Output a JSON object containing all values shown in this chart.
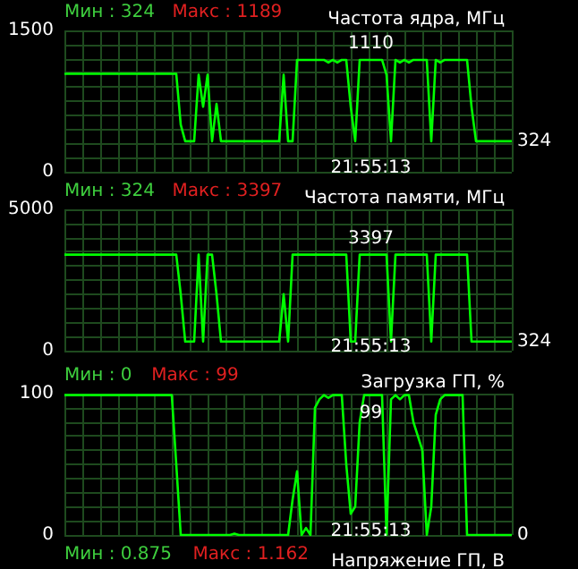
{
  "chart_data": [
    {
      "type": "line",
      "title": "Частота ядра, МГц",
      "annotations": [
        "Мин : 324",
        "Макс : 1189",
        "21:55:13",
        "1110",
        "324"
      ],
      "categories": [
        null,
        null,
        null,
        null,
        null,
        null,
        null,
        null,
        null,
        null,
        null,
        null,
        null,
        null,
        null,
        null,
        null,
        null,
        null,
        null,
        null,
        null,
        null,
        null,
        null,
        null,
        null,
        null,
        null,
        null,
        null,
        null,
        null,
        null,
        null,
        null,
        null,
        null,
        null,
        null,
        null,
        null,
        null,
        null,
        null,
        null,
        null,
        null,
        null,
        null,
        null,
        null,
        null,
        null,
        null,
        null,
        null,
        null,
        null,
        null,
        null,
        null,
        null,
        null,
        null,
        null,
        null,
        null,
        null,
        null,
        null,
        null,
        null,
        null,
        null,
        null,
        null,
        null,
        null,
        null,
        null,
        null,
        null,
        null,
        null,
        null,
        null,
        null,
        null,
        null,
        null,
        null,
        null,
        null,
        null,
        null,
        null,
        null,
        null,
        null,
        null
      ],
      "series": [
        {
          "color": "#00ff00",
          "values": [
            1040,
            1040,
            1040,
            1040,
            1040,
            1040,
            1040,
            1040,
            1040,
            1040,
            1040,
            1040,
            1040,
            1040,
            1040,
            1040,
            1040,
            1040,
            1040,
            1040,
            1040,
            1040,
            1040,
            1040,
            1040,
            1040,
            500,
            324,
            324,
            324,
            1030,
            690,
            1030,
            324,
            720,
            324,
            324,
            324,
            324,
            324,
            324,
            324,
            324,
            324,
            324,
            324,
            324,
            324,
            324,
            1030,
            324,
            324,
            1187,
            1187,
            1187,
            1187,
            1187,
            1187,
            1187,
            1160,
            1187,
            1160,
            1187,
            1187,
            690,
            324,
            1187,
            1187,
            1187,
            1187,
            1187,
            1187,
            1030,
            324,
            1187,
            1160,
            1187,
            1160,
            1187,
            1187,
            1187,
            1187,
            324,
            1187,
            1160,
            1187,
            1187,
            1187,
            1187,
            1187,
            1187,
            690,
            324,
            324,
            324,
            324,
            324,
            324,
            324,
            324,
            324
          ]
        }
      ],
      "ylim": [
        0,
        1500
      ],
      "yticks": [
        0,
        {
          "value": 150,
          "label": null
        },
        {
          "value": 300,
          "label": null
        },
        {
          "value": 450,
          "label": null
        },
        {
          "value": 600,
          "label": null
        },
        {
          "value": 750,
          "label": null
        },
        {
          "value": 900,
          "label": null
        },
        {
          "value": 1050,
          "label": null
        },
        {
          "value": 1200,
          "label": null
        },
        {
          "value": 1350,
          "label": null
        },
        1500
      ],
      "grid": true,
      "marker": "none"
    },
    {
      "type": "line",
      "title": "Частота памяти, МГц",
      "annotations": [
        "Мин : 324",
        "Макс : 3397",
        "21:55:13",
        "3397",
        "324"
      ],
      "categories": [
        null,
        null,
        null,
        null,
        null,
        null,
        null,
        null,
        null,
        null,
        null,
        null,
        null,
        null,
        null,
        null,
        null,
        null,
        null,
        null,
        null,
        null,
        null,
        null,
        null,
        null,
        null,
        null,
        null,
        null,
        null,
        null,
        null,
        null,
        null,
        null,
        null,
        null,
        null,
        null,
        null,
        null,
        null,
        null,
        null,
        null,
        null,
        null,
        null,
        null,
        null,
        null,
        null,
        null,
        null,
        null,
        null,
        null,
        null,
        null,
        null,
        null,
        null,
        null,
        null,
        null,
        null,
        null,
        null,
        null,
        null,
        null,
        null,
        null,
        null,
        null,
        null,
        null,
        null,
        null,
        null,
        null,
        null,
        null,
        null,
        null,
        null,
        null,
        null,
        null,
        null,
        null,
        null,
        null,
        null,
        null,
        null,
        null,
        null,
        null,
        null
      ],
      "series": [
        {
          "color": "#00ff00",
          "values": [
            3397,
            3397,
            3397,
            3397,
            3397,
            3397,
            3397,
            3397,
            3397,
            3397,
            3397,
            3397,
            3397,
            3397,
            3397,
            3397,
            3397,
            3397,
            3397,
            3397,
            3397,
            3397,
            3397,
            3397,
            3397,
            3397,
            2000,
            324,
            324,
            324,
            3397,
            324,
            3397,
            3397,
            2000,
            324,
            324,
            324,
            324,
            324,
            324,
            324,
            324,
            324,
            324,
            324,
            324,
            324,
            324,
            2000,
            324,
            3397,
            3397,
            3397,
            3397,
            3397,
            3397,
            3397,
            3397,
            3397,
            3397,
            3397,
            3397,
            3397,
            324,
            324,
            3397,
            3397,
            3397,
            3397,
            3397,
            3397,
            3397,
            324,
            3397,
            3397,
            3397,
            3397,
            3397,
            3397,
            3397,
            3397,
            324,
            3397,
            3397,
            3397,
            3397,
            3397,
            3397,
            3397,
            3397,
            324,
            324,
            324,
            324,
            324,
            324,
            324,
            324,
            324,
            324
          ]
        }
      ],
      "ylim": [
        0,
        5000
      ],
      "yticks": [
        0,
        {
          "value": 500,
          "label": null
        },
        {
          "value": 1000,
          "label": null
        },
        {
          "value": 1500,
          "label": null
        },
        {
          "value": 2000,
          "label": null
        },
        {
          "value": 2500,
          "label": null
        },
        {
          "value": 3000,
          "label": null
        },
        {
          "value": 3500,
          "label": null
        },
        {
          "value": 4000,
          "label": null
        },
        {
          "value": 4500,
          "label": null
        },
        5000
      ],
      "grid": true,
      "marker": "none"
    },
    {
      "type": "line",
      "title": "Загрузка ГП, %",
      "annotations": [
        "Мин : 0",
        "Макс : 99",
        "21:55:13",
        "99",
        "0"
      ],
      "categories": [
        null,
        null,
        null,
        null,
        null,
        null,
        null,
        null,
        null,
        null,
        null,
        null,
        null,
        null,
        null,
        null,
        null,
        null,
        null,
        null,
        null,
        null,
        null,
        null,
        null,
        null,
        null,
        null,
        null,
        null,
        null,
        null,
        null,
        null,
        null,
        null,
        null,
        null,
        null,
        null,
        null,
        null,
        null,
        null,
        null,
        null,
        null,
        null,
        null,
        null,
        null,
        null,
        null,
        null,
        null,
        null,
        null,
        null,
        null,
        null,
        null,
        null,
        null,
        null,
        null,
        null,
        null,
        null,
        null,
        null,
        null,
        null,
        null,
        null,
        null,
        null,
        null,
        null,
        null,
        null,
        null,
        null,
        null,
        null,
        null,
        null,
        null,
        null,
        null,
        null,
        null,
        null,
        null,
        null,
        null,
        null,
        null,
        null,
        null,
        null,
        null
      ],
      "series": [
        {
          "color": "#00ff00",
          "values": [
            99,
            99,
            99,
            99,
            99,
            99,
            99,
            99,
            99,
            99,
            99,
            99,
            99,
            99,
            99,
            99,
            99,
            99,
            99,
            99,
            99,
            99,
            99,
            99,
            99,
            50,
            0,
            0,
            0,
            0,
            0,
            0,
            0,
            0,
            0,
            0,
            0,
            0,
            1,
            0,
            0,
            0,
            0,
            0,
            0,
            0,
            0,
            0,
            0,
            0,
            0,
            25,
            45,
            0,
            5,
            0,
            90,
            96,
            99,
            97,
            99,
            99,
            99,
            50,
            15,
            20,
            80,
            99,
            99,
            99,
            99,
            99,
            0,
            96,
            99,
            96,
            99,
            99,
            80,
            70,
            60,
            0,
            20,
            85,
            96,
            99,
            99,
            99,
            99,
            99,
            0,
            0,
            0,
            0,
            0,
            0,
            0,
            0,
            0,
            0,
            0
          ]
        }
      ],
      "ylim": [
        0,
        100
      ],
      "yticks": [
        0,
        {
          "value": 10,
          "label": null
        },
        {
          "value": 20,
          "label": null
        },
        {
          "value": 30,
          "label": null
        },
        {
          "value": 40,
          "label": null
        },
        {
          "value": 50,
          "label": null
        },
        {
          "value": 60,
          "label": null
        },
        {
          "value": 70,
          "label": null
        },
        {
          "value": 80,
          "label": null
        },
        {
          "value": 90,
          "label": null
        },
        100
      ],
      "grid": true,
      "marker": "none"
    },
    {
      "type": "other",
      "title": "Напряжение ГП, В",
      "annotations": [
        "Мин : 0.875",
        "Макс : 1.162"
      ]
    }
  ]
}
